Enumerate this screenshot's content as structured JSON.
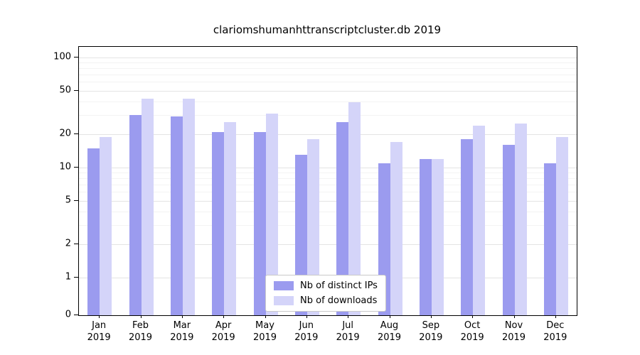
{
  "chart_data": {
    "type": "bar",
    "title": "clariomshumanhttranscriptcluster.db 2019",
    "categories": [
      "Jan",
      "Feb",
      "Mar",
      "Apr",
      "May",
      "Jun",
      "Jul",
      "Aug",
      "Sep",
      "Oct",
      "Nov",
      "Dec"
    ],
    "year_label": "2019",
    "series": [
      {
        "name": "Nb of distinct IPs",
        "color": "#9b9bef",
        "values": [
          15,
          30,
          29,
          21,
          21,
          13,
          26,
          11,
          12,
          18,
          16,
          11
        ]
      },
      {
        "name": "Nb of downloads",
        "color": "#d4d4f9",
        "values": [
          19,
          42,
          42,
          26,
          31,
          18,
          39,
          17,
          12,
          24,
          25,
          19
        ]
      }
    ],
    "yscale": "symlog",
    "yticks": [
      0,
      1,
      2,
      5,
      10,
      20,
      50,
      100
    ],
    "ylim": [
      0,
      100
    ],
    "grid": true,
    "legend_position": "bottom-center",
    "axis_color": "#000000",
    "background_color": "#ffffff"
  }
}
